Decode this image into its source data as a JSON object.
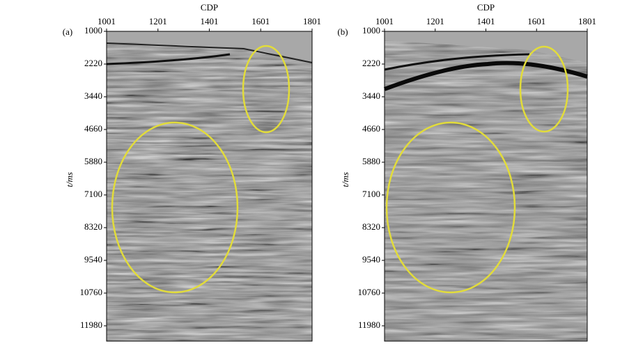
{
  "panels": [
    {
      "label": "(a)",
      "x_axis_title": "CDP",
      "y_axis_title": "t/ms",
      "xticks": [
        "1001",
        "1201",
        "1401",
        "1601",
        "1801"
      ],
      "yticks": [
        "1000",
        "2220",
        "3440",
        "4660",
        "5880",
        "7100",
        "8320",
        "9540",
        "10760",
        "11980"
      ]
    },
    {
      "label": "(b)",
      "x_axis_title": "CDP",
      "y_axis_title": "t/ms",
      "xticks": [
        "1001",
        "1201",
        "1401",
        "1601",
        "1801"
      ],
      "yticks": [
        "1000",
        "2220",
        "3440",
        "4660",
        "5880",
        "7100",
        "8320",
        "9540",
        "10760",
        "11980"
      ]
    }
  ]
}
